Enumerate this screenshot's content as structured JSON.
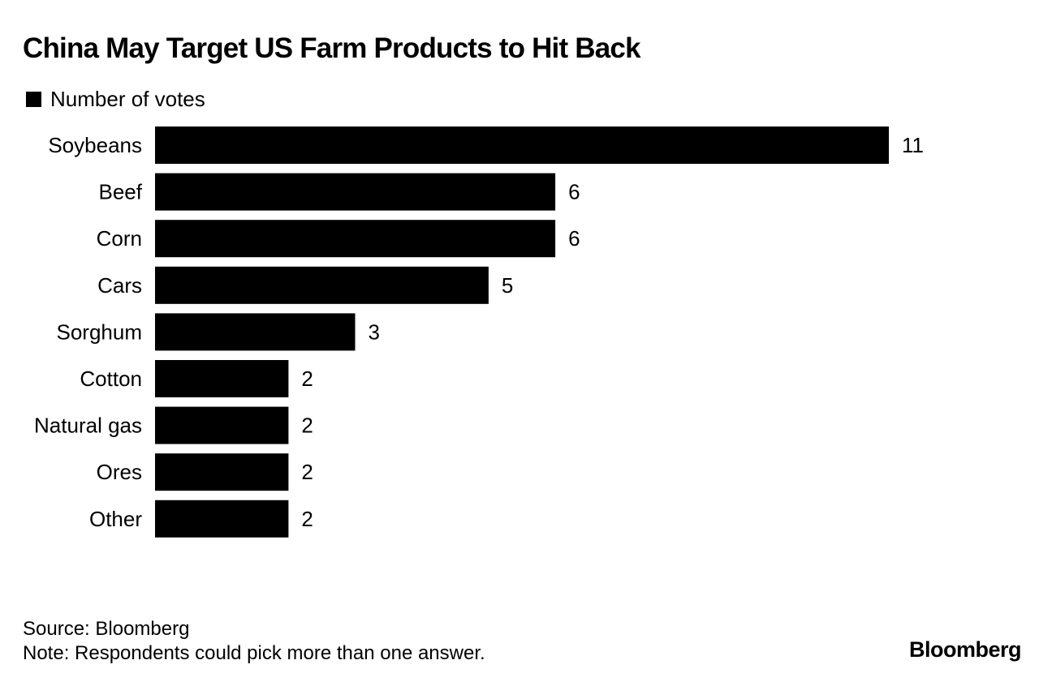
{
  "title": "China May Target US Farm Products to Hit Back",
  "legend_label": "Number of votes",
  "colors": {
    "bar": "#000000",
    "background": "#ffffff"
  },
  "source": "Source: Bloomberg",
  "note": "Note: Respondents could pick more than one answer.",
  "brand": "Bloomberg",
  "chart_data": {
    "type": "bar",
    "orientation": "horizontal",
    "title": "China May Target US Farm Products to Hit Back",
    "xlabel": "",
    "ylabel": "",
    "categories": [
      "Soybeans",
      "Beef",
      "Corn",
      "Cars",
      "Sorghum",
      "Cotton",
      "Natural gas",
      "Ores",
      "Other"
    ],
    "series": [
      {
        "name": "Number of votes",
        "values": [
          11,
          6,
          6,
          5,
          3,
          2,
          2,
          2,
          2
        ]
      }
    ],
    "xlim": [
      0,
      11
    ],
    "grid": false,
    "legend_position": "top-left",
    "data_labels": true
  }
}
